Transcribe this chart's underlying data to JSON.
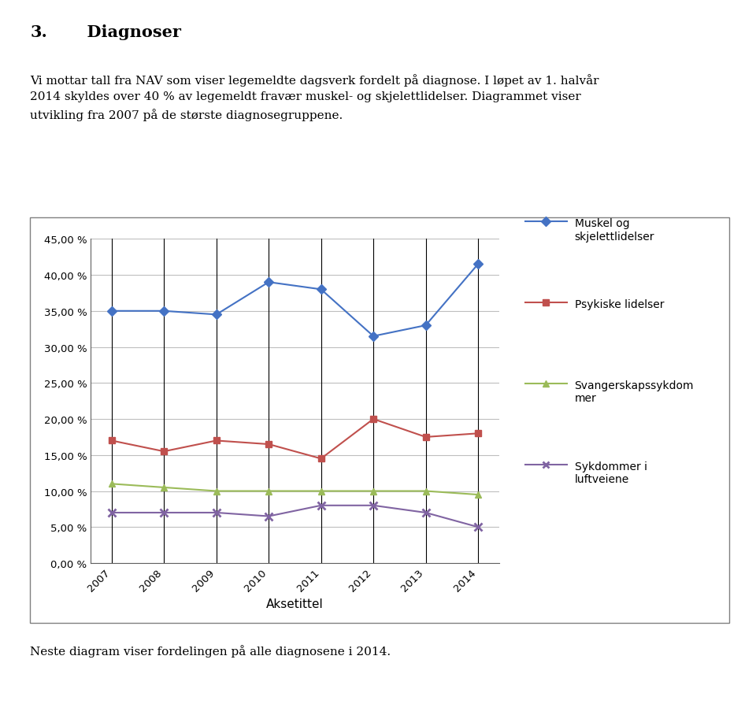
{
  "years": [
    2007,
    2008,
    2009,
    2010,
    2011,
    2012,
    2013,
    2014
  ],
  "muskel": [
    0.35,
    0.35,
    0.345,
    0.39,
    0.38,
    0.315,
    0.33,
    0.415
  ],
  "psykiske": [
    0.17,
    0.155,
    0.17,
    0.165,
    0.145,
    0.2,
    0.175,
    0.18
  ],
  "svangerskaps": [
    0.11,
    0.105,
    0.1,
    0.1,
    0.1,
    0.1,
    0.1,
    0.095
  ],
  "sykdommer_luft": [
    0.07,
    0.07,
    0.07,
    0.065,
    0.08,
    0.08,
    0.07,
    0.05
  ],
  "muskel_color": "#4472C4",
  "psykiske_color": "#C0504D",
  "svangerskaps_color": "#9BBB59",
  "sykdommer_color": "#8064A2",
  "muskel_label": "Muskel og\nskjelettlidelser",
  "psykiske_label": "Psykiske lidelser",
  "svangerskaps_label": "Svangerskapssykdom\nmer",
  "sykdommer_label": "Sykdommer i\nluftveiene",
  "xlabel": "Aksetittel",
  "ylim": [
    0.0,
    0.45
  ],
  "yticks": [
    0.0,
    0.05,
    0.1,
    0.15,
    0.2,
    0.25,
    0.3,
    0.35,
    0.4,
    0.45
  ],
  "ytick_labels": [
    "0,00 %",
    "5,00 %",
    "10,00 %",
    "15,00 %",
    "20,00 %",
    "25,00 %",
    "30,00 %",
    "35,00 %",
    "40,00 %",
    "45,00 %"
  ],
  "header_number": "3.",
  "header_title": "  Diagnoser",
  "paragraph1": "Vi mottar tall fra NAV som viser legemeldte dagsverk fordelt på diagnose. I løpet av 1. halvår\n2014 skyldes over 40 % av legemeldt fravær muskel- og skjelettlidelser. Diagrammet viser\nutvikling fra 2007 på de største diagnosegruppene.",
  "footer": "Neste diagram viser fordelingen på alle diagnosene i 2014.",
  "grid_color": "#BEBEBE",
  "box_edge_color": "#808080"
}
